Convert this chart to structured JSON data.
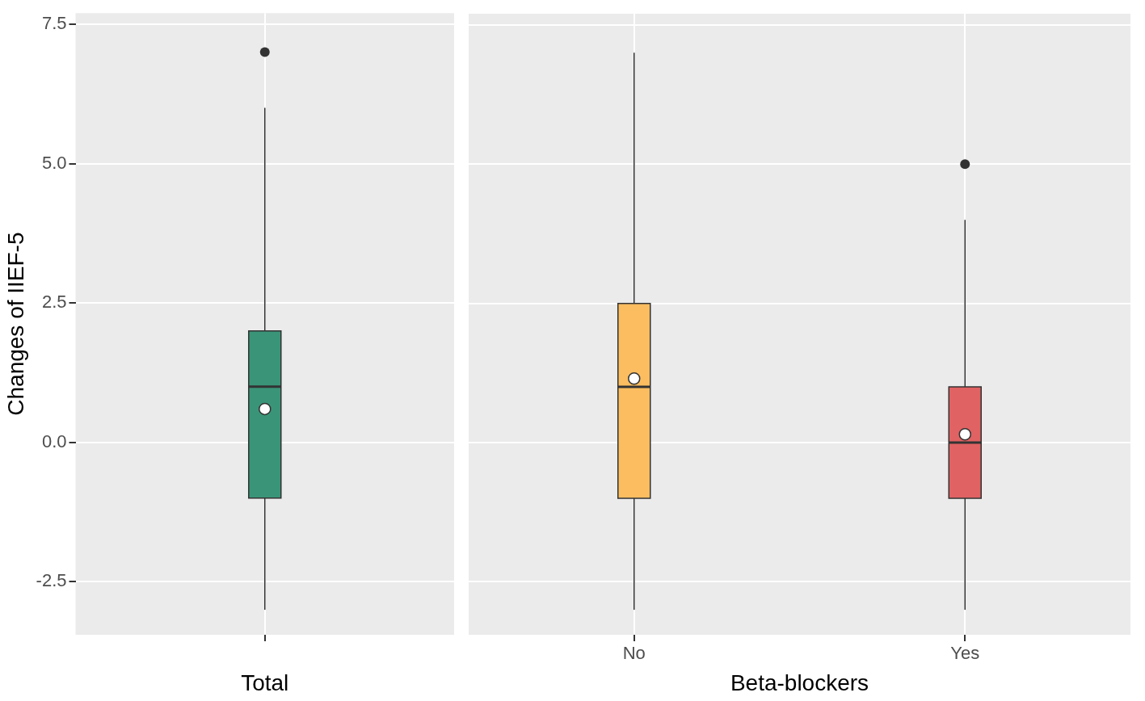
{
  "chart_data": [
    {
      "type": "box",
      "xlabel": "Total",
      "ylabel": "Changes of IIEF-5",
      "categories": [
        null
      ],
      "ylim": [
        -3.45,
        7.7
      ],
      "yticks": [
        {
          "value": -2.5,
          "label": "-2.5"
        },
        {
          "value": 0,
          "label": "0.0"
        },
        {
          "value": 2.5,
          "label": "2.5"
        },
        {
          "value": 5,
          "label": "5.0"
        },
        {
          "value": 7.5,
          "label": "7.5"
        }
      ],
      "grid": true,
      "series": [
        {
          "color": "#3a9578",
          "boxes": [
            {
              "low": -3,
              "q1": -1,
              "median": 1,
              "q3": 2,
              "high": 6,
              "mean": 0.6,
              "outliers": [
                7
              ]
            }
          ]
        }
      ]
    },
    {
      "type": "box",
      "xlabel": "Beta-blockers",
      "categories": [
        "No",
        "Yes"
      ],
      "ylim": [
        -3.45,
        7.7
      ],
      "yticks": [
        -2.5,
        0,
        2.5,
        5,
        7.5
      ],
      "grid": true,
      "tick_labels": "x",
      "series": [
        {
          "colors": [
            "#fbbd5f",
            "#e06262"
          ],
          "boxes": [
            {
              "low": -3,
              "q1": -1,
              "median": 1,
              "q3": 2.5,
              "high": 7,
              "mean": 1.15
            },
            {
              "low": -3,
              "q1": -1,
              "median": 0,
              "q3": 1,
              "high": 4,
              "mean": 0.15,
              "outliers": [
                5
              ]
            }
          ]
        }
      ]
    }
  ]
}
